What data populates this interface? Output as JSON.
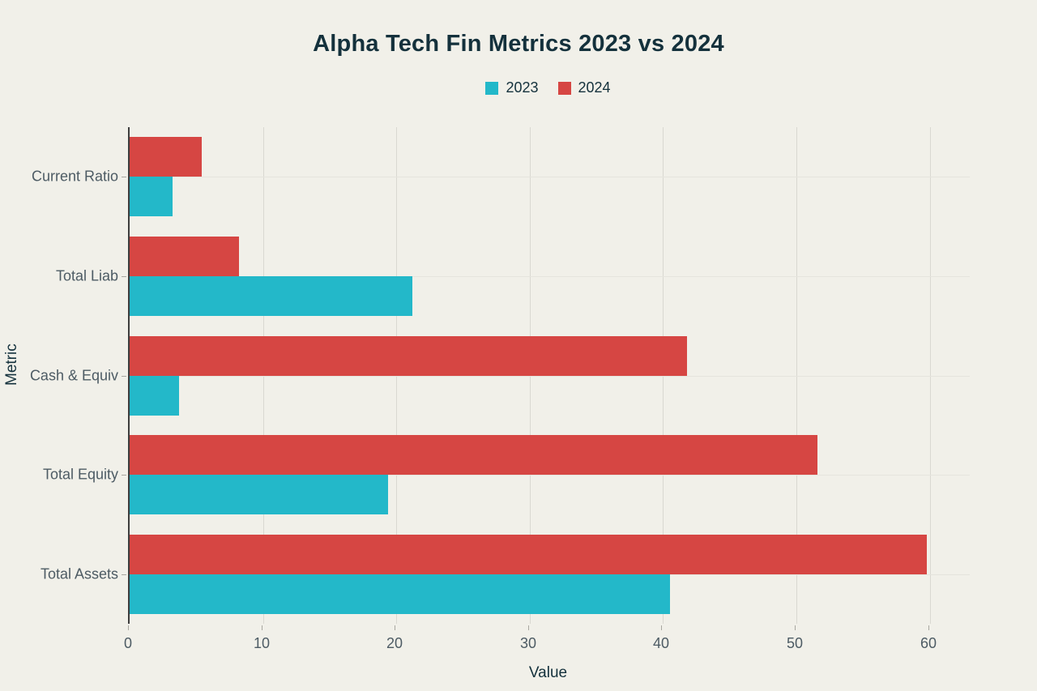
{
  "title": "Alpha Tech Fin Metrics 2023 vs 2024",
  "legend": {
    "items": [
      {
        "label": "2023",
        "color": "#23b8c9"
      },
      {
        "label": "2024",
        "color": "#d64643"
      }
    ]
  },
  "chart_data": {
    "type": "bar",
    "orientation": "horizontal",
    "title": "Alpha Tech Fin Metrics 2023 vs 2024",
    "categories": [
      "Current Ratio",
      "Total Liab",
      "Cash & Equiv",
      "Total Equity",
      "Total Assets"
    ],
    "series": [
      {
        "name": "2023",
        "color": "#23b8c9",
        "values": [
          3.2,
          21.2,
          3.7,
          19.4,
          40.5
        ]
      },
      {
        "name": "2024",
        "color": "#d64643",
        "values": [
          5.4,
          8.2,
          41.8,
          51.6,
          59.8
        ]
      }
    ],
    "xlabel": "Value",
    "ylabel": "Metric",
    "xlim": [
      0,
      63
    ],
    "xticks": [
      0,
      10,
      20,
      30,
      40,
      50,
      60
    ],
    "grid": true,
    "legend_position": "top-center",
    "bar_order_note": "2024 bar drawn above 2023 bar within each category group; Current Ratio group at top"
  },
  "colors": {
    "background": "#f1f0e9",
    "bar_2023": "#23b8c9",
    "bar_2024": "#d64643",
    "grid_vertical": "#d9d8d1",
    "grid_horizontal": "#e5e4dd",
    "axis_line": "#3d3d3d",
    "tick_text": "#4d5b64",
    "title_text": "#14313c"
  }
}
